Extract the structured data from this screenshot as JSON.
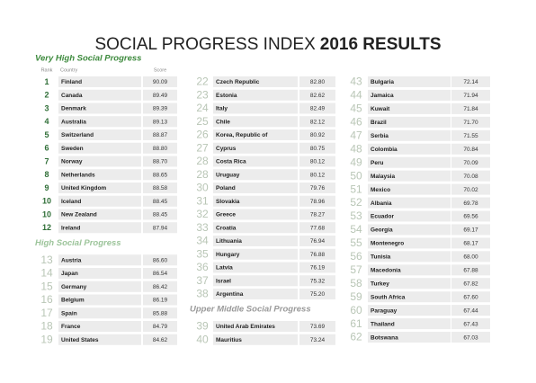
{
  "title": {
    "part1": "SOCIAL PROGRESS INDEX",
    "part2": "2016 RESULTS"
  },
  "column_headers": {
    "rank": "Rank",
    "country": "Country",
    "score": "Score"
  },
  "columns": [
    [
      {
        "heading": "Very High Social Progress",
        "rows": [
          [
            "1",
            "Finland",
            "90.09"
          ],
          [
            "2",
            "Canada",
            "89.49"
          ],
          [
            "3",
            "Denmark",
            "89.39"
          ],
          [
            "4",
            "Australia",
            "89.13"
          ],
          [
            "5",
            "Switzerland",
            "88.87"
          ],
          [
            "6",
            "Sweden",
            "88.80"
          ],
          [
            "7",
            "Norway",
            "88.70"
          ],
          [
            "8",
            "Netherlands",
            "88.65"
          ],
          [
            "9",
            "United Kingdom",
            "88.58"
          ],
          [
            "10",
            "Iceland",
            "88.45"
          ],
          [
            "10",
            "New Zealand",
            "88.45"
          ],
          [
            "12",
            "Ireland",
            "87.94"
          ]
        ]
      },
      {
        "heading": "High Social Progress",
        "rows": [
          [
            "13",
            "Austria",
            "86.60"
          ],
          [
            "14",
            "Japan",
            "86.54"
          ],
          [
            "15",
            "Germany",
            "86.42"
          ],
          [
            "16",
            "Belgium",
            "86.19"
          ],
          [
            "17",
            "Spain",
            "85.88"
          ],
          [
            "18",
            "France",
            "84.79"
          ],
          [
            "19",
            "United States",
            "84.62"
          ]
        ]
      }
    ],
    [
      {
        "rows": [
          [
            "22",
            "Czech Republic",
            "82.80"
          ],
          [
            "23",
            "Estonia",
            "82.62"
          ],
          [
            "24",
            "Italy",
            "82.49"
          ],
          [
            "25",
            "Chile",
            "82.12"
          ],
          [
            "26",
            "Korea, Republic of",
            "80.92"
          ],
          [
            "27",
            "Cyprus",
            "80.75"
          ],
          [
            "28",
            "Costa Rica",
            "80.12"
          ],
          [
            "28",
            "Uruguay",
            "80.12"
          ],
          [
            "30",
            "Poland",
            "79.76"
          ],
          [
            "31",
            "Slovakia",
            "78.96"
          ],
          [
            "32",
            "Greece",
            "78.27"
          ],
          [
            "33",
            "Croatia",
            "77.68"
          ],
          [
            "34",
            "Lithuania",
            "76.94"
          ],
          [
            "35",
            "Hungary",
            "76.88"
          ],
          [
            "36",
            "Latvia",
            "76.19"
          ],
          [
            "37",
            "Israel",
            "75.32"
          ],
          [
            "38",
            "Argentina",
            "75.20"
          ]
        ]
      },
      {
        "heading": "Upper Middle Social Progress",
        "rows": [
          [
            "39",
            "United Arab Emirates",
            "73.69"
          ],
          [
            "40",
            "Mauritius",
            "73.24"
          ]
        ]
      }
    ],
    [
      {
        "rows": [
          [
            "43",
            "Bulgaria",
            "72.14"
          ],
          [
            "44",
            "Jamaica",
            "71.94"
          ],
          [
            "45",
            "Kuwait",
            "71.84"
          ],
          [
            "46",
            "Brazil",
            "71.70"
          ],
          [
            "47",
            "Serbia",
            "71.55"
          ],
          [
            "48",
            "Colombia",
            "70.84"
          ],
          [
            "49",
            "Peru",
            "70.09"
          ],
          [
            "50",
            "Malaysia",
            "70.08"
          ],
          [
            "51",
            "Mexico",
            "70.02"
          ],
          [
            "52",
            "Albania",
            "69.78"
          ],
          [
            "53",
            "Ecuador",
            "69.56"
          ],
          [
            "54",
            "Georgia",
            "69.17"
          ],
          [
            "55",
            "Montenegro",
            "68.17"
          ],
          [
            "56",
            "Tunisia",
            "68.00"
          ],
          [
            "57",
            "Macedonia",
            "67.88"
          ],
          [
            "58",
            "Turkey",
            "67.82"
          ],
          [
            "59",
            "South Africa",
            "67.60"
          ],
          [
            "60",
            "Paraguay",
            "67.44"
          ],
          [
            "61",
            "Thailand",
            "67.43"
          ],
          [
            "62",
            "Botswana",
            "67.03"
          ]
        ]
      }
    ]
  ]
}
